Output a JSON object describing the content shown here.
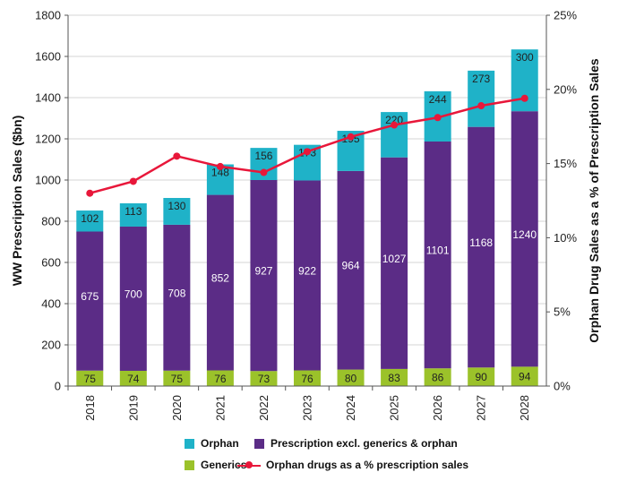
{
  "chart_data": {
    "type": "bar",
    "stacked": true,
    "categories": [
      "2018",
      "2019",
      "2020",
      "2021",
      "2022",
      "2023",
      "2024",
      "2025",
      "2026",
      "2027",
      "2028"
    ],
    "series": [
      {
        "name": "Generics",
        "color": "#9bc22a",
        "label_color": "#222222",
        "values": [
          75,
          74,
          75,
          76,
          73,
          76,
          80,
          83,
          86,
          90,
          94
        ]
      },
      {
        "name": "Prescription excl. generics & orphan",
        "color": "#5b2c86",
        "label_color": "#ffffff",
        "values": [
          675,
          700,
          708,
          852,
          927,
          922,
          964,
          1027,
          1101,
          1168,
          1240
        ]
      },
      {
        "name": "Orphan",
        "color": "#1fb2c8",
        "label_color": "#222222",
        "values": [
          102,
          113,
          130,
          148,
          156,
          173,
          195,
          220,
          244,
          273,
          300
        ]
      }
    ],
    "line_series": {
      "name": "Orphan drugs as a % prescription sales",
      "color": "#e8173a",
      "axis": "right",
      "values": [
        13.0,
        13.8,
        15.5,
        14.8,
        14.4,
        15.8,
        16.8,
        17.6,
        18.1,
        18.9,
        19.4
      ]
    },
    "ylabel": "WW Prescription Sales ($bn)",
    "ylim": [
      0,
      1800
    ],
    "yticks": [
      "0",
      "200",
      "400",
      "600",
      "800",
      "1000",
      "1200",
      "1400",
      "1600",
      "1800"
    ],
    "y2label": "Orphan Drug Sales as a % of Prescription Sales",
    "y2lim": [
      0,
      25
    ],
    "y2ticks": [
      "0%",
      "5%",
      "10%",
      "15%",
      "20%",
      "25%"
    ],
    "grid": true,
    "legend": [
      {
        "label": "Orphan",
        "kind": "swatch",
        "color": "#1fb2c8"
      },
      {
        "label": "Prescription excl. generics & orphan",
        "kind": "swatch",
        "color": "#5b2c86"
      },
      {
        "label": "Generics",
        "kind": "swatch",
        "color": "#9bc22a"
      },
      {
        "label": "Orphan drugs as a % prescription sales",
        "kind": "line",
        "color": "#e8173a"
      }
    ]
  }
}
